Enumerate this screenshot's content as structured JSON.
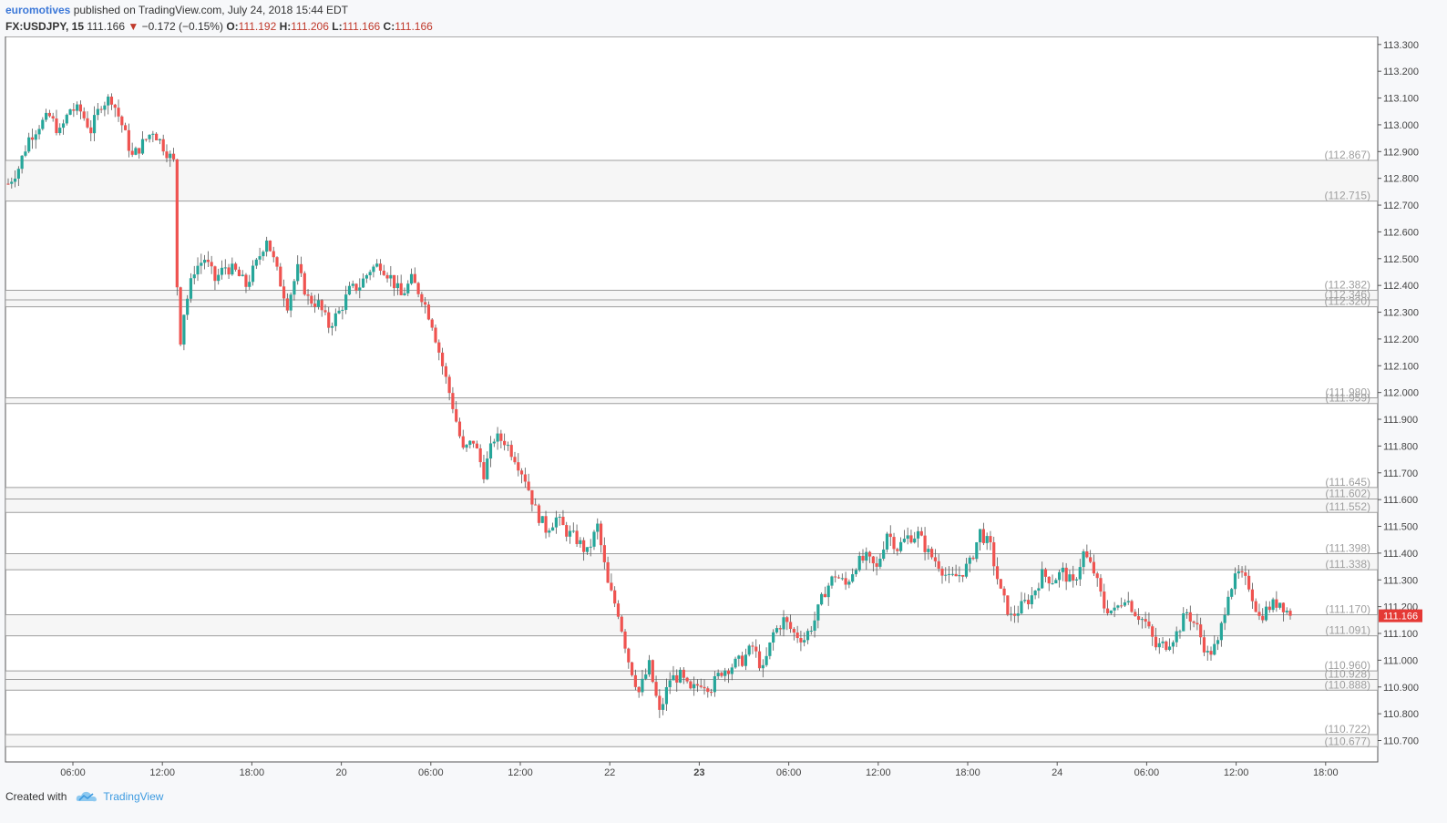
{
  "header": {
    "author": "euromotives",
    "published_text": "published on TradingView.com, July 24, 2018 15:44 EDT",
    "symbol": "FX:USDJPY, 15",
    "last": "111.166",
    "change": "−0.172 (−0.15%)",
    "o_label": "O:",
    "o_value": "111.192",
    "h_label": "H:",
    "h_value": "111.206",
    "l_label": "L:",
    "l_value": "111.166",
    "c_label": "C:",
    "c_value": "111.166"
  },
  "footer": {
    "created_with": "Created with",
    "brand": "TradingView"
  },
  "colors": {
    "up": "#26a69a",
    "down": "#ef5350",
    "level_line": "#9e9e9e",
    "zone_fill": "#eeeeee",
    "price_tag": "#e53935"
  },
  "chart_data": {
    "type": "candlestick",
    "ylim": [
      110.62,
      113.33
    ],
    "y_ticks": [
      "113.300",
      "113.200",
      "113.100",
      "113.000",
      "112.900",
      "112.800",
      "112.700",
      "112.600",
      "112.500",
      "112.400",
      "112.300",
      "112.200",
      "112.100",
      "112.000",
      "111.900",
      "111.800",
      "111.700",
      "111.600",
      "111.500",
      "111.400",
      "111.300",
      "111.200",
      "111.100",
      "111.000",
      "110.900",
      "110.800",
      "110.700"
    ],
    "x_ticks": [
      {
        "label": "06:00",
        "bold": false
      },
      {
        "label": "12:00",
        "bold": false
      },
      {
        "label": "18:00",
        "bold": false
      },
      {
        "label": "20",
        "bold": false
      },
      {
        "label": "06:00",
        "bold": false
      },
      {
        "label": "12:00",
        "bold": false
      },
      {
        "label": "22",
        "bold": false
      },
      {
        "label": "23",
        "bold": true
      },
      {
        "label": "06:00",
        "bold": false
      },
      {
        "label": "12:00",
        "bold": false
      },
      {
        "label": "18:00",
        "bold": false
      },
      {
        "label": "24",
        "bold": false
      },
      {
        "label": "06:00",
        "bold": false
      },
      {
        "label": "12:00",
        "bold": false
      },
      {
        "label": "18:00",
        "bold": false
      }
    ],
    "levels": [
      "112.867",
      "112.715",
      "112.382",
      "112.346",
      "112.320",
      "111.980",
      "111.959",
      "111.645",
      "111.602",
      "111.552",
      "111.398",
      "111.338",
      "111.170",
      "111.091",
      "110.960",
      "110.928",
      "110.888",
      "110.722",
      "110.677"
    ],
    "zones": [
      [
        112.715,
        112.867
      ],
      [
        112.32,
        112.382
      ],
      [
        111.959,
        111.98
      ],
      [
        111.552,
        111.645
      ],
      [
        111.338,
        111.398
      ],
      [
        111.091,
        111.17
      ],
      [
        110.888,
        110.96
      ],
      [
        110.677,
        110.722
      ]
    ],
    "last_price": "111.166",
    "path": [
      [
        0,
        112.78
      ],
      [
        3,
        112.84
      ],
      [
        6,
        112.95
      ],
      [
        9,
        113.0
      ],
      [
        12,
        113.03
      ],
      [
        15,
        112.97
      ],
      [
        18,
        113.06
      ],
      [
        21,
        113.05
      ],
      [
        24,
        112.98
      ],
      [
        27,
        113.08
      ],
      [
        30,
        113.1
      ],
      [
        33,
        113.0
      ],
      [
        36,
        112.88
      ],
      [
        39,
        112.93
      ],
      [
        42,
        112.98
      ],
      [
        45,
        112.92
      ],
      [
        48,
        112.86
      ],
      [
        49,
        112.4
      ],
      [
        50,
        112.2
      ],
      [
        51,
        112.3
      ],
      [
        54,
        112.46
      ],
      [
        57,
        112.5
      ],
      [
        60,
        112.42
      ],
      [
        63,
        112.47
      ],
      [
        66,
        112.45
      ],
      [
        69,
        112.4
      ],
      [
        72,
        112.48
      ],
      [
        75,
        112.58
      ],
      [
        78,
        112.45
      ],
      [
        81,
        112.33
      ],
      [
        84,
        112.46
      ],
      [
        87,
        112.35
      ],
      [
        90,
        112.33
      ],
      [
        93,
        112.25
      ],
      [
        96,
        112.3
      ],
      [
        99,
        112.38
      ],
      [
        102,
        112.4
      ],
      [
        105,
        112.46
      ],
      [
        108,
        112.48
      ],
      [
        111,
        112.43
      ],
      [
        114,
        112.36
      ],
      [
        117,
        112.42
      ],
      [
        120,
        112.36
      ],
      [
        123,
        112.26
      ],
      [
        126,
        112.1
      ],
      [
        129,
        111.95
      ],
      [
        132,
        111.78
      ],
      [
        135,
        111.82
      ],
      [
        138,
        111.7
      ],
      [
        141,
        111.83
      ],
      [
        144,
        111.82
      ],
      [
        147,
        111.76
      ],
      [
        150,
        111.68
      ],
      [
        153,
        111.56
      ],
      [
        156,
        111.49
      ],
      [
        159,
        111.53
      ],
      [
        162,
        111.48
      ],
      [
        165,
        111.45
      ],
      [
        168,
        111.4
      ],
      [
        171,
        111.5
      ],
      [
        174,
        111.28
      ],
      [
        177,
        111.18
      ],
      [
        180,
        111.0
      ],
      [
        183,
        110.88
      ],
      [
        186,
        110.98
      ],
      [
        189,
        110.8
      ],
      [
        192,
        110.93
      ],
      [
        195,
        110.94
      ],
      [
        198,
        110.88
      ],
      [
        201,
        110.92
      ],
      [
        204,
        110.9
      ],
      [
        207,
        110.96
      ],
      [
        210,
        110.98
      ],
      [
        213,
        111.0
      ],
      [
        216,
        111.05
      ],
      [
        219,
        110.96
      ],
      [
        222,
        111.1
      ],
      [
        225,
        111.15
      ],
      [
        228,
        111.1
      ],
      [
        231,
        111.08
      ],
      [
        234,
        111.15
      ],
      [
        237,
        111.26
      ],
      [
        240,
        111.32
      ],
      [
        243,
        111.28
      ],
      [
        246,
        111.36
      ],
      [
        249,
        111.38
      ],
      [
        252,
        111.34
      ],
      [
        255,
        111.48
      ],
      [
        258,
        111.42
      ],
      [
        261,
        111.46
      ],
      [
        264,
        111.47
      ],
      [
        267,
        111.4
      ],
      [
        270,
        111.36
      ],
      [
        273,
        111.3
      ],
      [
        276,
        111.32
      ],
      [
        279,
        111.36
      ],
      [
        282,
        111.48
      ],
      [
        285,
        111.42
      ],
      [
        288,
        111.25
      ],
      [
        291,
        111.16
      ],
      [
        294,
        111.2
      ],
      [
        297,
        111.24
      ],
      [
        300,
        111.32
      ],
      [
        303,
        111.3
      ],
      [
        306,
        111.33
      ],
      [
        309,
        111.28
      ],
      [
        312,
        111.4
      ],
      [
        315,
        111.33
      ],
      [
        318,
        111.2
      ],
      [
        321,
        111.18
      ],
      [
        324,
        111.24
      ],
      [
        327,
        111.18
      ],
      [
        330,
        111.14
      ],
      [
        333,
        111.05
      ],
      [
        336,
        111.06
      ],
      [
        339,
        111.1
      ],
      [
        342,
        111.18
      ],
      [
        345,
        111.12
      ],
      [
        348,
        111.02
      ],
      [
        351,
        111.06
      ],
      [
        354,
        111.26
      ],
      [
        357,
        111.32
      ],
      [
        360,
        111.28
      ],
      [
        363,
        111.16
      ],
      [
        366,
        111.2
      ],
      [
        369,
        111.22
      ],
      [
        372,
        111.166
      ]
    ]
  }
}
